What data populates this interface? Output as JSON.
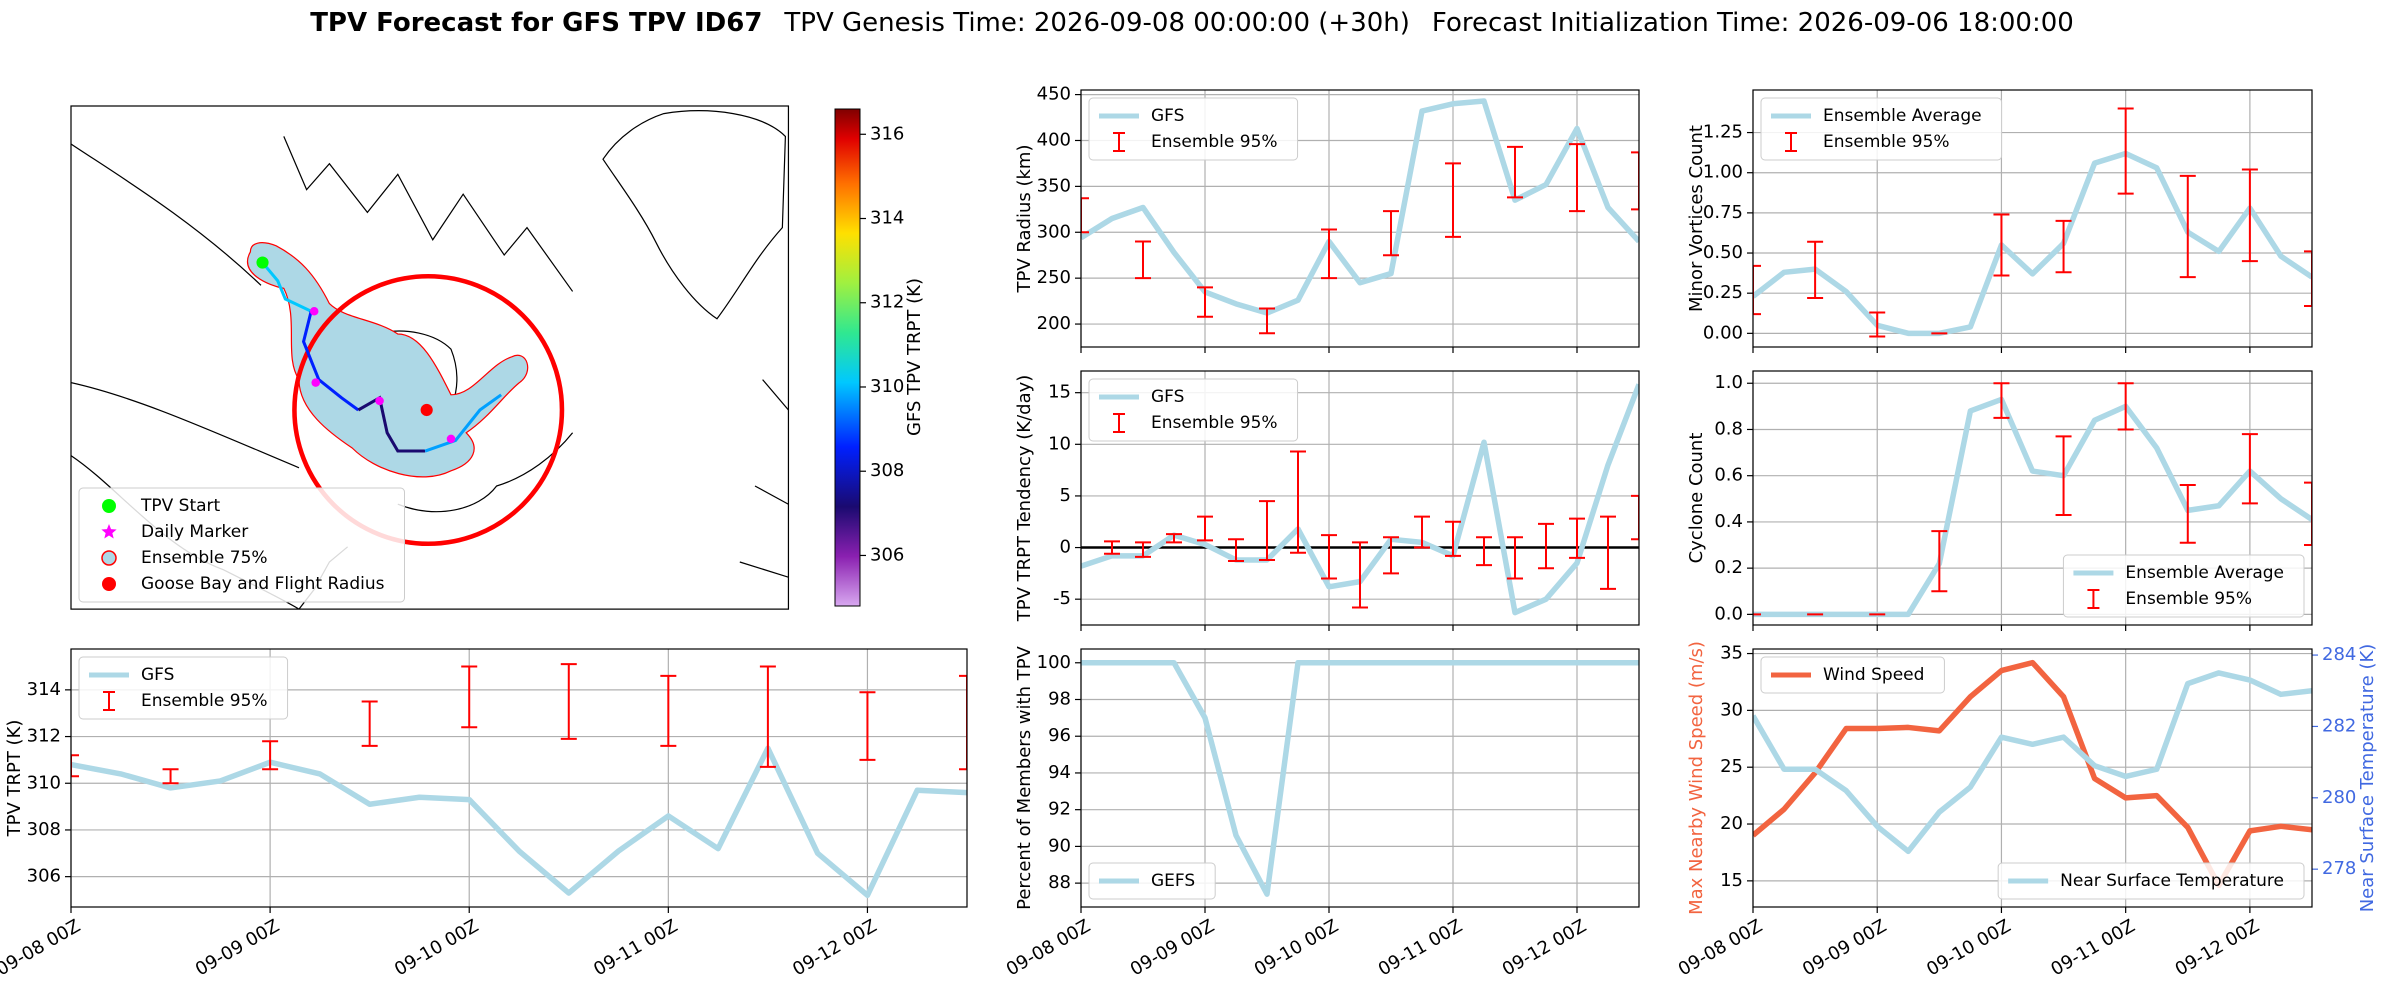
{
  "figure": {
    "title": "TPV Forecast for GFS TPV ID67",
    "genesis_time": "TPV Genesis Time: 2026-09-08 00:00:00 (+30h)",
    "init_time": "Forecast Initialization Time: 2026-09-06 18:00:00"
  },
  "chart_data": [
    {
      "type": "map",
      "colorbar_label": "GFS TPV TRPT (K)",
      "clim": [
        304.8,
        316.6
      ],
      "cticks": [
        306,
        308,
        310,
        312,
        314,
        316
      ],
      "legend": "lower left",
      "legend_entries": [
        {
          "label": "TPV Start",
          "color": "#00ff00",
          "marker": "o"
        },
        {
          "label": "Daily Marker",
          "color": "#ff00ff",
          "marker": "*"
        },
        {
          "label": "Ensemble 75%",
          "color": "#add8e6",
          "marker": "o",
          "edgecolor": "#ff0000"
        },
        {
          "label": "Goose Bay and Flight Radius",
          "color": "#ff0000",
          "marker": "o"
        }
      ]
    },
    {
      "type": "line",
      "ylabel": "TPV Radius (km)",
      "sharex": 3,
      "grid": true,
      "legend": "upper left",
      "x": [
        0,
        6,
        12,
        18,
        24,
        30,
        36,
        42,
        48,
        54,
        60,
        66,
        72,
        78,
        84,
        90,
        96,
        102,
        108
      ],
      "xlim": [
        0,
        108
      ],
      "ylim": [
        175,
        455
      ],
      "yticks": [
        200,
        250,
        300,
        350,
        400,
        450
      ],
      "series": [
        {
          "name": "GFS",
          "color": "#add8e6",
          "values": [
            294,
            315,
            327,
            278,
            235,
            222,
            212,
            226,
            290,
            245,
            255,
            432,
            440,
            443,
            335,
            352,
            413,
            327,
            290
          ]
        }
      ],
      "errorbars": {
        "name": "Ensemble 95%",
        "color": "#ff0000",
        "x": [
          0,
          12,
          24,
          36,
          48,
          60,
          72,
          84,
          96,
          108
        ],
        "low": [
          300,
          250,
          208,
          190,
          250,
          275,
          295,
          338,
          323,
          325
        ],
        "high": [
          337,
          290,
          240,
          217,
          303,
          323,
          375,
          393,
          396,
          387
        ]
      }
    },
    {
      "type": "line",
      "ylabel": "TPV TRPT Tendency (K/day)",
      "sharex": 3,
      "grid": true,
      "legend": "upper left",
      "hline": 0,
      "x": [
        0,
        6,
        12,
        18,
        24,
        30,
        36,
        42,
        48,
        54,
        60,
        66,
        72,
        78,
        84,
        90,
        96,
        102,
        108
      ],
      "xlim": [
        0,
        108
      ],
      "ylim": [
        -7.5,
        17.1
      ],
      "yticks": [
        -5,
        0,
        5,
        10,
        15
      ],
      "series": [
        {
          "name": "GFS",
          "color": "#add8e6",
          "values": [
            -1.8,
            -0.8,
            -0.8,
            1.2,
            0.3,
            -1.2,
            -1.2,
            1.8,
            -3.8,
            -3.3,
            0.8,
            0.5,
            -0.8,
            10.2,
            -6.3,
            -5,
            -1.5,
            8,
            15.8
          ]
        }
      ],
      "errorbars": {
        "name": "Ensemble 95%",
        "color": "#ff0000",
        "x": [
          6,
          12,
          18,
          24,
          30,
          36,
          42,
          48,
          54,
          60,
          66,
          72,
          78,
          84,
          90,
          96,
          102,
          108
        ],
        "low": [
          -0.6,
          -0.9,
          0.5,
          0.7,
          -1.3,
          -1.2,
          -0.5,
          -3,
          -5.8,
          -2.5,
          0,
          -0.8,
          -1.7,
          -3,
          -2,
          -1,
          -4,
          0.8
        ],
        "high": [
          0.6,
          0.5,
          1.3,
          3,
          0.8,
          4.5,
          9.3,
          1.2,
          0.5,
          1,
          3,
          2.5,
          1,
          1,
          2.3,
          2.8,
          3,
          5
        ]
      }
    },
    {
      "type": "line",
      "ylabel": "Percent of Members with TPV",
      "grid": true,
      "legend": "lower left",
      "x": [
        0,
        6,
        12,
        18,
        24,
        30,
        36,
        42,
        48,
        54,
        60,
        66,
        72,
        78,
        84,
        90,
        96,
        102,
        108
      ],
      "xlim": [
        0,
        108
      ],
      "ylim": [
        86.7,
        100.75
      ],
      "yticks": [
        88,
        90,
        92,
        94,
        96,
        98,
        100
      ],
      "xticks": [
        {
          "value": 0,
          "label": "09-08 00Z"
        },
        {
          "value": 24,
          "label": "09-09 00Z"
        },
        {
          "value": 48,
          "label": "09-10 00Z"
        },
        {
          "value": 72,
          "label": "09-11 00Z"
        },
        {
          "value": 96,
          "label": "09-12 00Z"
        }
      ],
      "series": [
        {
          "name": "GEFS",
          "color": "#add8e6",
          "values": [
            100,
            100,
            100,
            100,
            97,
            90.6,
            87.4,
            100,
            100,
            100,
            100,
            100,
            100,
            100,
            100,
            100,
            100,
            100,
            100
          ]
        }
      ]
    },
    {
      "type": "line",
      "ylabel": "TPV TRPT (K)",
      "grid": true,
      "legend": "upper left",
      "x": [
        0,
        6,
        12,
        18,
        24,
        30,
        36,
        42,
        48,
        54,
        60,
        66,
        72,
        78,
        84,
        90,
        96,
        102,
        108
      ],
      "xlim": [
        0,
        108
      ],
      "ylim": [
        304.7,
        315.75
      ],
      "yticks": [
        306,
        308,
        310,
        312,
        314
      ],
      "xticks": [
        {
          "value": 0,
          "label": "09-08 00Z"
        },
        {
          "value": 24,
          "label": "09-09 00Z"
        },
        {
          "value": 48,
          "label": "09-10 00Z"
        },
        {
          "value": 72,
          "label": "09-11 00Z"
        },
        {
          "value": 96,
          "label": "09-12 00Z"
        }
      ],
      "series": [
        {
          "name": "GFS",
          "color": "#add8e6",
          "values": [
            310.8,
            310.4,
            309.8,
            310.1,
            310.9,
            310.4,
            309.1,
            309.4,
            309.3,
            307.1,
            305.3,
            307.1,
            308.6,
            307.2,
            311.5,
            307.0,
            305.2,
            309.7,
            309.6
          ]
        }
      ],
      "errorbars": {
        "name": "Ensemble 95%",
        "color": "#ff0000",
        "x": [
          0,
          12,
          24,
          36,
          48,
          60,
          72,
          84,
          96,
          108
        ],
        "low": [
          310.3,
          310.0,
          310.6,
          311.6,
          312.4,
          311.9,
          311.6,
          310.7,
          311.0,
          310.6
        ],
        "high": [
          311.2,
          310.6,
          311.8,
          313.5,
          315.0,
          315.1,
          314.6,
          315.0,
          313.9,
          314.6
        ]
      }
    },
    {
      "type": "line",
      "ylabel": "Minor Vortices Count",
      "sharex": 7,
      "grid": true,
      "legend": "upper left",
      "x": [
        0,
        6,
        12,
        18,
        24,
        30,
        36,
        42,
        48,
        54,
        60,
        66,
        72,
        78,
        84,
        90,
        96,
        102,
        108
      ],
      "xlim": [
        0,
        108
      ],
      "ylim": [
        -0.085,
        1.515
      ],
      "yticks": [
        {
          "value": 0,
          "label": "0.00"
        },
        {
          "value": 0.25,
          "label": "0.25"
        },
        {
          "value": 0.5,
          "label": "0.50"
        },
        {
          "value": 0.75,
          "label": "0.75"
        },
        {
          "value": 1,
          "label": "1.00"
        },
        {
          "value": 1.25,
          "label": "1.25"
        }
      ],
      "series": [
        {
          "name": "Ensemble Average",
          "color": "#add8e6",
          "values": [
            0.23,
            0.38,
            0.4,
            0.26,
            0.05,
            0,
            0,
            0.04,
            0.55,
            0.37,
            0.56,
            1.06,
            1.12,
            1.03,
            0.63,
            0.51,
            0.78,
            0.48,
            0.35
          ]
        }
      ],
      "errorbars": {
        "name": "Ensemble 95%",
        "color": "#ff0000",
        "x": [
          0,
          12,
          24,
          36,
          48,
          60,
          72,
          84,
          96,
          108
        ],
        "low": [
          0.12,
          0.22,
          -0.02,
          0,
          0.36,
          0.38,
          0.87,
          0.35,
          0.45,
          0.17
        ],
        "high": [
          0.42,
          0.57,
          0.13,
          0,
          0.74,
          0.7,
          1.4,
          0.98,
          1.02,
          0.51
        ]
      }
    },
    {
      "type": "line",
      "ylabel": "Cyclone Count",
      "sharex": 7,
      "grid": true,
      "legend": "lower right",
      "x": [
        0,
        6,
        12,
        18,
        24,
        30,
        36,
        42,
        48,
        54,
        60,
        66,
        72,
        78,
        84,
        90,
        96,
        102,
        108
      ],
      "xlim": [
        0,
        108
      ],
      "ylim": [
        -0.046,
        1.053
      ],
      "yticks": [
        {
          "value": 0,
          "label": "0.0"
        },
        {
          "value": 0.2,
          "label": "0.2"
        },
        {
          "value": 0.4,
          "label": "0.4"
        },
        {
          "value": 0.6,
          "label": "0.6"
        },
        {
          "value": 0.8,
          "label": "0.8"
        },
        {
          "value": 1,
          "label": "1.0"
        }
      ],
      "series": [
        {
          "name": "Ensemble Average",
          "color": "#add8e6",
          "values": [
            0,
            0,
            0,
            0,
            0,
            0,
            0.22,
            0.88,
            0.93,
            0.62,
            0.6,
            0.84,
            0.9,
            0.72,
            0.45,
            0.47,
            0.62,
            0.5,
            0.41
          ]
        }
      ],
      "errorbars": {
        "name": "Ensemble 95%",
        "color": "#ff0000",
        "x": [
          0,
          12,
          24,
          36,
          48,
          60,
          72,
          84,
          96,
          108
        ],
        "low": [
          0,
          0,
          0,
          0.1,
          0.85,
          0.43,
          0.8,
          0.31,
          0.48,
          0.3
        ],
        "high": [
          0,
          0,
          0,
          0.36,
          1.0,
          0.77,
          1.0,
          0.56,
          0.78,
          0.57
        ]
      }
    },
    {
      "type": "line",
      "ylabel": "Max Nearby Wind Speed (m/s)",
      "ylabel_color": "#f26440",
      "y2label": "Near Surface Temperature (K)",
      "y2_color": "#4169e1",
      "grid": true,
      "legend": "upper left",
      "x": [
        0,
        6,
        12,
        18,
        24,
        30,
        36,
        42,
        48,
        54,
        60,
        66,
        72,
        78,
        84,
        90,
        96,
        102,
        108
      ],
      "xlim": [
        0,
        108
      ],
      "ylim": [
        12.7,
        35.4
      ],
      "yticks": [
        15,
        20,
        25,
        30,
        35
      ],
      "y2lim": [
        276.94,
        284.17
      ],
      "y2ticks": [
        278,
        280,
        282,
        284
      ],
      "xticks": [
        {
          "value": 0,
          "label": "09-08 00Z"
        },
        {
          "value": 24,
          "label": "09-09 00Z"
        },
        {
          "value": 48,
          "label": "09-10 00Z"
        },
        {
          "value": 72,
          "label": "09-11 00Z"
        },
        {
          "value": 96,
          "label": "09-12 00Z"
        }
      ],
      "series": [
        {
          "name": "Wind Speed",
          "color": "#f26440",
          "values": [
            19.0,
            21.3,
            24.5,
            28.4,
            28.4,
            28.5,
            28.2,
            31.2,
            33.5,
            34.2,
            31.2,
            24.0,
            22.3,
            22.5,
            19.7,
            14.6,
            19.4,
            19.8,
            19.5
          ]
        },
        {
          "name": "Near Surface Temperature",
          "color": "#add8e6",
          "axis": "y2",
          "legend": "lower right",
          "values": [
            282.3,
            280.8,
            280.8,
            280.2,
            279.2,
            278.5,
            279.6,
            280.3,
            281.7,
            281.5,
            281.7,
            280.9,
            280.6,
            280.8,
            283.2,
            283.5,
            283.3,
            282.9,
            283.0
          ]
        }
      ]
    }
  ]
}
